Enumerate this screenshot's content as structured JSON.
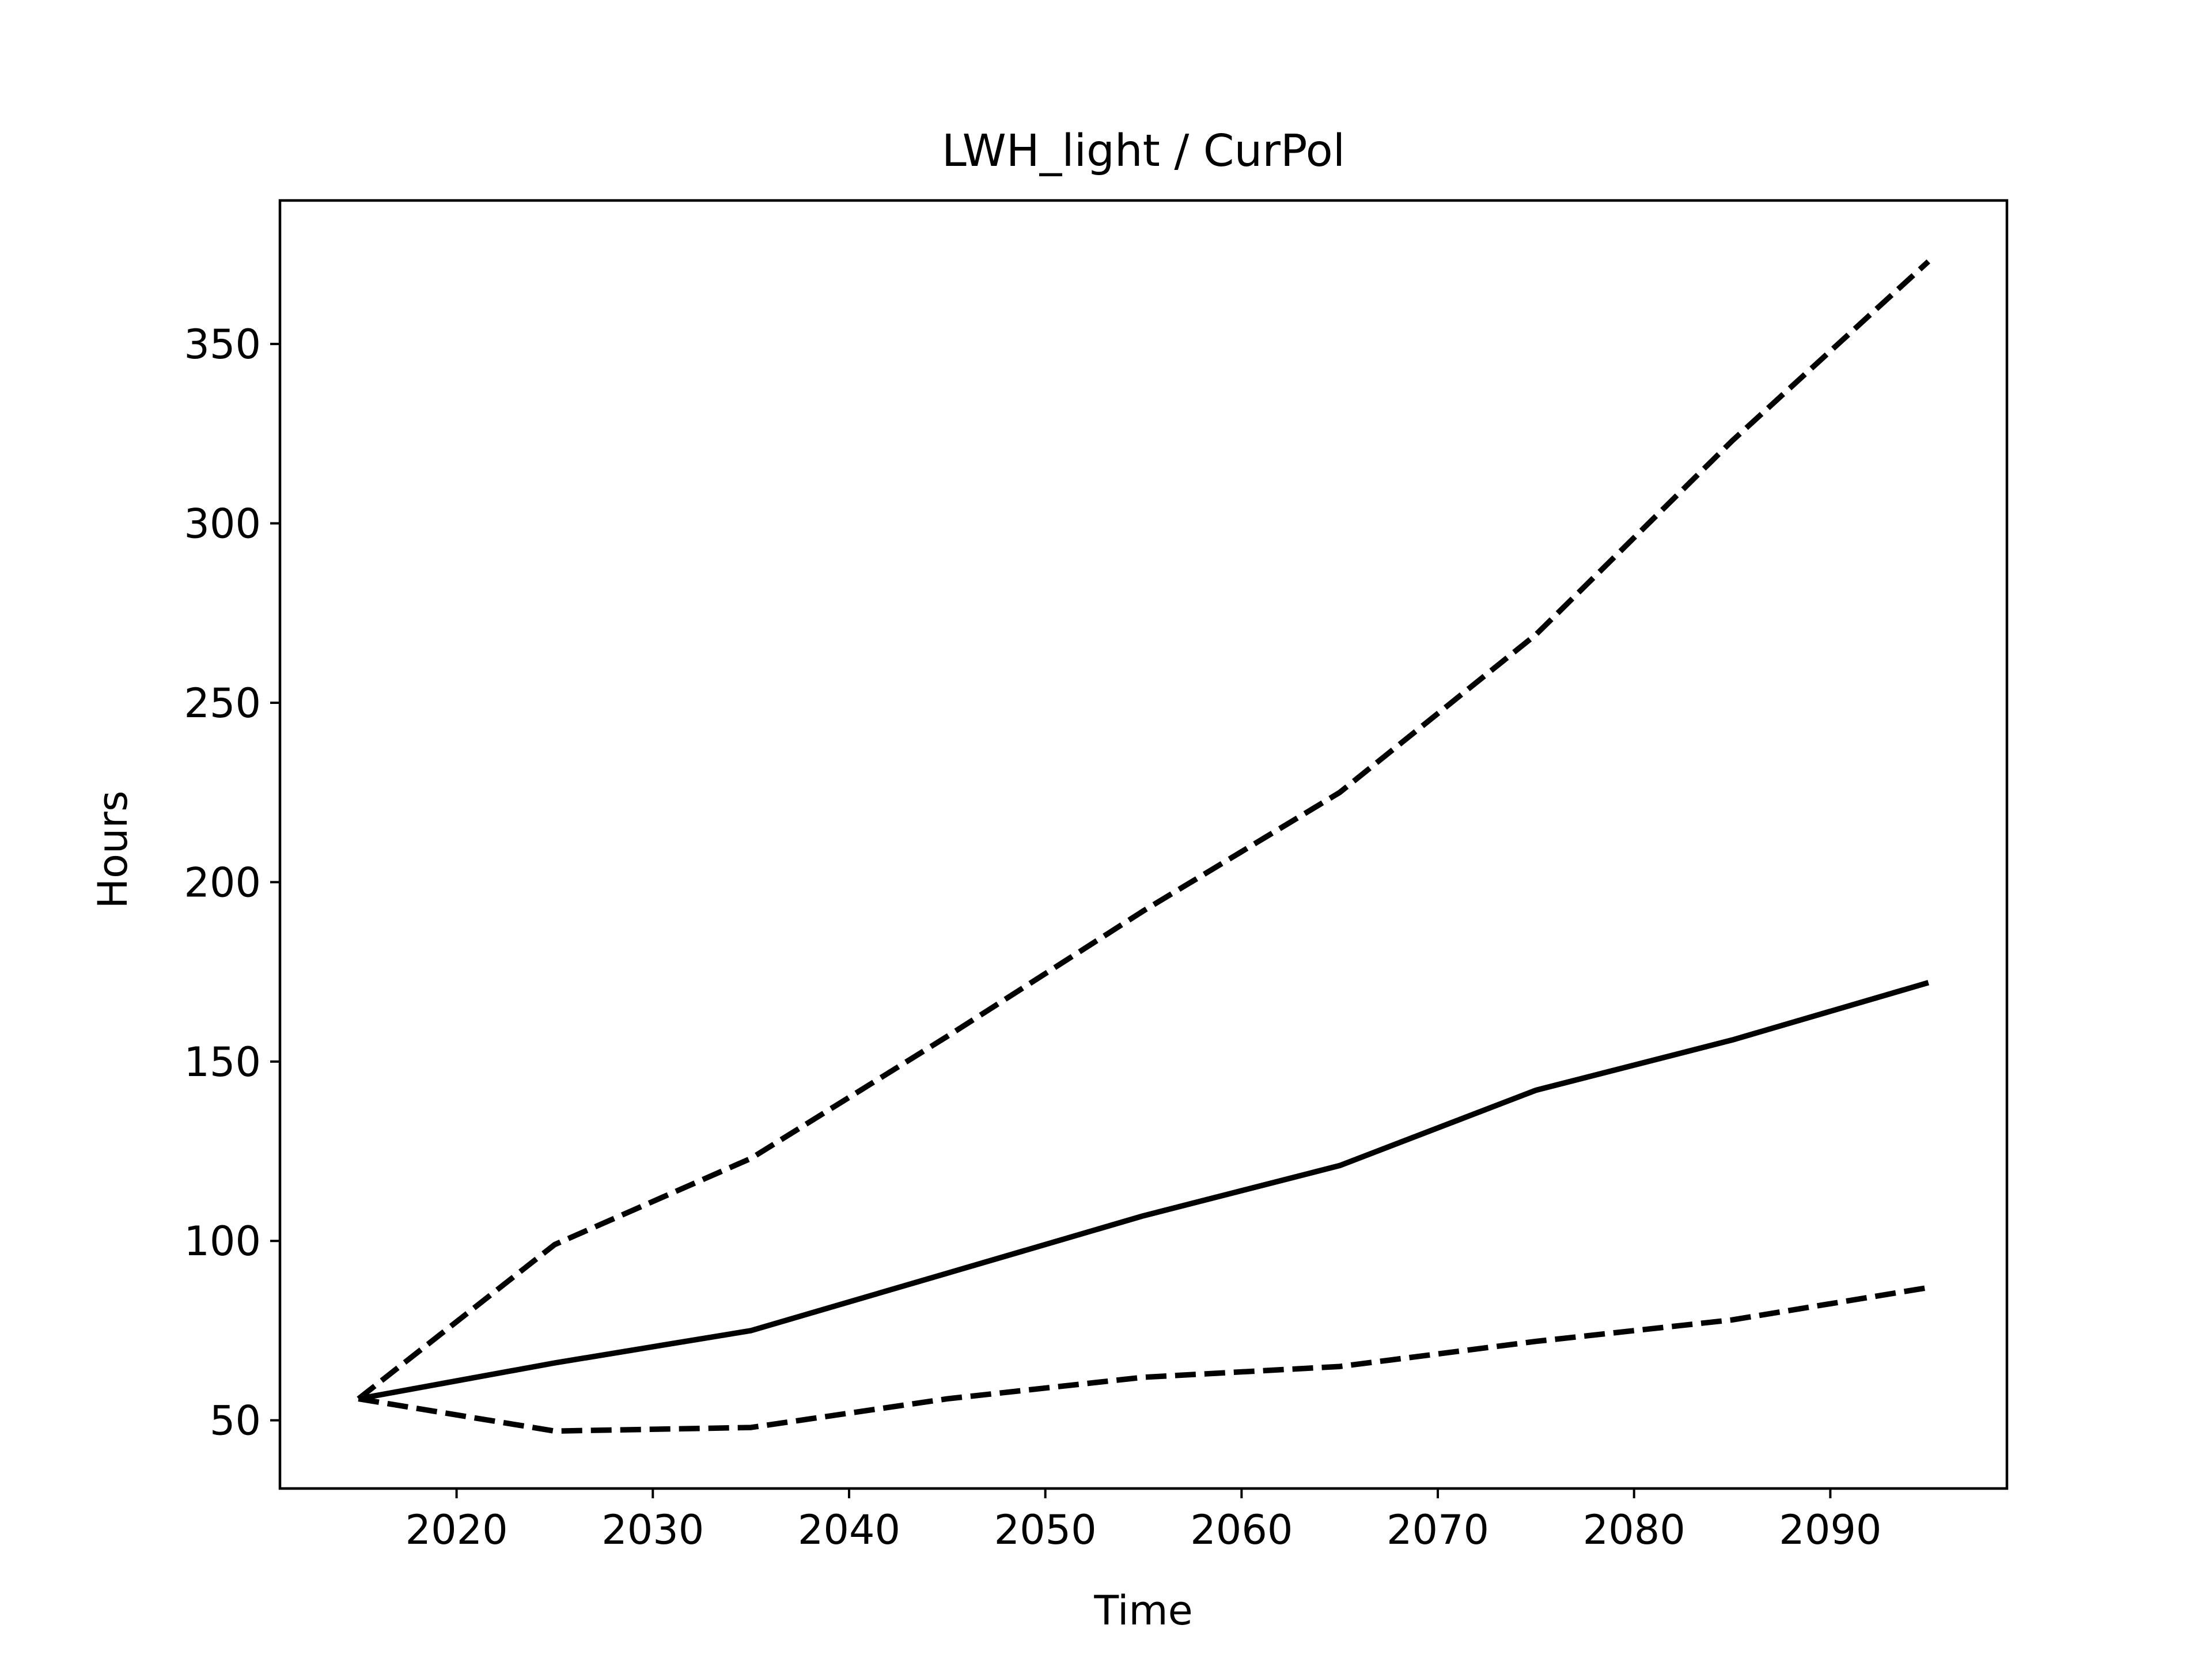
{
  "chart_data": {
    "type": "line",
    "title": "LWH_light / CurPol",
    "xlabel": "Time",
    "ylabel": "Hours",
    "xlim": [
      2011,
      2099
    ],
    "ylim": [
      31,
      390
    ],
    "xticks": [
      2020,
      2030,
      2040,
      2050,
      2060,
      2070,
      2080,
      2090
    ],
    "yticks": [
      50,
      100,
      150,
      200,
      250,
      300,
      350
    ],
    "grid": false,
    "legend": "none",
    "x": [
      2015,
      2025,
      2035,
      2045,
      2055,
      2065,
      2075,
      2085,
      2095
    ],
    "series": [
      {
        "style": "dashed",
        "color": "#000000",
        "values": [
          56,
          99,
          123,
          157,
          192,
          225,
          269,
          323,
          373
        ]
      },
      {
        "style": "solid",
        "color": "#000000",
        "values": [
          56,
          66,
          75,
          91,
          107,
          121,
          142,
          156,
          172
        ]
      },
      {
        "style": "dashed",
        "color": "#000000",
        "values": [
          56,
          47,
          48,
          56,
          62,
          65,
          72,
          78,
          87
        ]
      }
    ]
  }
}
